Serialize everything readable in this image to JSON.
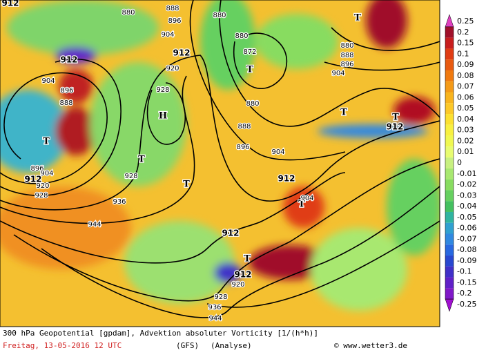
{
  "map_labels": [
    "912",
    "880",
    "888",
    "896",
    "904",
    "912",
    "920",
    "928",
    "H",
    "880",
    "880",
    "872",
    "T",
    "880",
    "888",
    "896",
    "904",
    "912",
    "904",
    "896",
    "888",
    "T",
    "896",
    "904",
    "912",
    "920",
    "928",
    "928",
    "T",
    "T",
    "936",
    "944",
    "912",
    "T",
    "904",
    "912",
    "T",
    "912",
    "920",
    "928",
    "936",
    "944",
    "T",
    "880",
    "888",
    "896",
    "904",
    "T",
    "T",
    "912"
  ],
  "colorbar": {
    "labels": [
      "0.25",
      "0.2",
      "0.15",
      "0.1",
      "0.09",
      "0.08",
      "0.07",
      "0.06",
      "0.05",
      "0.04",
      "0.03",
      "0.02",
      "0.01",
      "0",
      "-0.01",
      "-0.02",
      "-0.03",
      "-0.04",
      "-0.05",
      "-0.06",
      "-0.07",
      "-0.08",
      "-0.09",
      "-0.1",
      "-0.15",
      "-0.2",
      "-0.25"
    ],
    "colors": [
      "#e040c0",
      "#a0102a",
      "#c81e1e",
      "#e03c14",
      "#e85a10",
      "#f07a10",
      "#f49a18",
      "#f8b41e",
      "#fcc828",
      "#fce030",
      "#f8f040",
      "#f0f850",
      "#e8fc70",
      "#c8f080",
      "#a8e870",
      "#88dc60",
      "#66d060",
      "#44c060",
      "#30b4a0",
      "#30a0d0",
      "#3088e0",
      "#2868e0",
      "#2848d0",
      "#4030c8",
      "#6020c8",
      "#8018c8",
      "#a010d0"
    ]
  },
  "footer": {
    "line1": "300 hPa Geopotential [gpdam], Advektion absoluter Vorticity [1/(h*h)]",
    "date": "Freitag, 13-05-2016  12 UTC",
    "model": "(GFS)",
    "mode": "(Analyse)",
    "credit": "© www.wetter3.de"
  }
}
